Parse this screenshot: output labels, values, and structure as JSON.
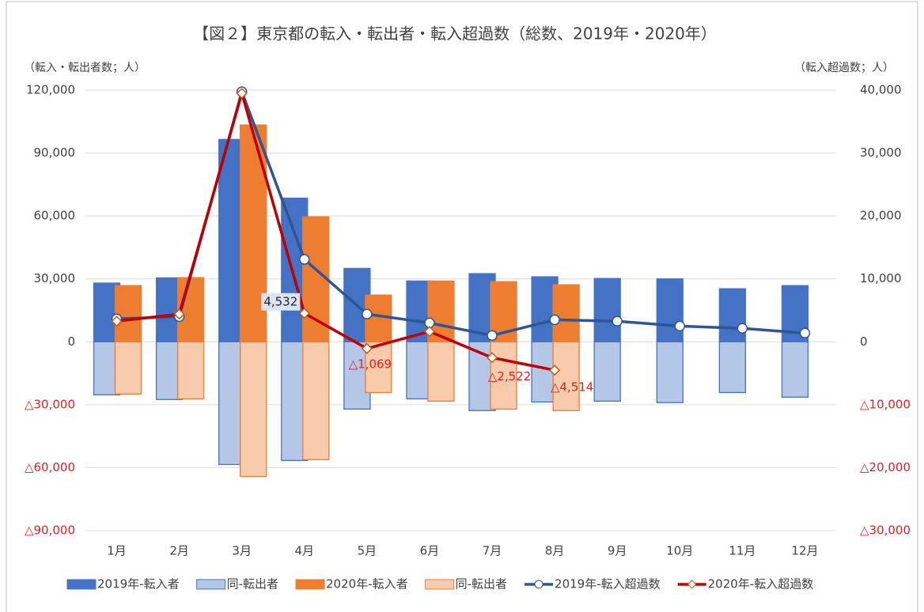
{
  "chart_data": {
    "type": "bar",
    "title": "【図２】東京都の転入・転出者・転入超過数（総数、2019年・2020年）",
    "ylabel": "（転入・転出者数；人）",
    "y2label": "（転入超過数；人）",
    "categories": [
      "1月",
      "2月",
      "3月",
      "4月",
      "5月",
      "6月",
      "7月",
      "8月",
      "9月",
      "10月",
      "11月",
      "12月"
    ],
    "series": [
      {
        "name": "2019年-転入者",
        "type": "bar",
        "color": "#4472c4",
        "edgecolor": "#4472c4",
        "values": [
          28000,
          30500,
          96500,
          68500,
          35000,
          29000,
          32500,
          31000,
          30200,
          30000,
          25300,
          26800
        ]
      },
      {
        "name": "同-転出者",
        "type": "bar",
        "color": "#b4c7e7",
        "edgecolor": "#4472c4",
        "values": [
          -25300,
          -27500,
          -58500,
          -56600,
          -32100,
          -27200,
          -32800,
          -28700,
          -28300,
          -29000,
          -24200,
          -26400
        ]
      },
      {
        "name": "2020年-転入者",
        "type": "bar",
        "color": "#ed7d31",
        "edgecolor": "#ed7d31",
        "values": [
          26800,
          30600,
          103400,
          59600,
          22300,
          29000,
          28700,
          27200,
          null,
          null,
          null,
          null
        ]
      },
      {
        "name": "同-転出者",
        "type": "bar",
        "color": "#f8cbad",
        "edgecolor": "#ed7d31",
        "values": [
          -24900,
          -27200,
          -64200,
          -56200,
          -24200,
          -28300,
          -32100,
          -32800,
          null,
          null,
          null,
          null
        ]
      },
      {
        "name": "2019年-転入超過数",
        "type": "line",
        "axis": "y2",
        "color": "#2f5597",
        "marker": "circle",
        "values": [
          3650,
          4000,
          39750,
          13100,
          4400,
          3000,
          1000,
          3500,
          3270,
          2500,
          2140,
          1380
        ]
      },
      {
        "name": "2020年-転入超過数",
        "type": "line",
        "axis": "y2",
        "color": "#c00000",
        "marker": "diamond",
        "values": [
          3270,
          4400,
          39500,
          4532,
          -1069,
          1640,
          -2522,
          -4514,
          null,
          null,
          null,
          null
        ],
        "value_labels": [
          null,
          null,
          null,
          "4,532",
          "△1,069",
          null,
          "△2,522",
          "△4,514",
          null,
          null,
          null,
          null
        ]
      }
    ],
    "ylim": [
      -90000,
      120000
    ],
    "yticks": [
      {
        "value": -90000,
        "label": "△90,000"
      },
      {
        "value": -60000,
        "label": "△60,000"
      },
      {
        "value": -30000,
        "label": "△30,000"
      },
      0,
      {
        "value": 30000,
        "label": "30,000"
      },
      {
        "value": 60000,
        "label": "60,000"
      },
      {
        "value": 90000,
        "label": "90,000"
      },
      {
        "value": 120000,
        "label": "120,000"
      }
    ],
    "y2lim": [
      -30000,
      40000
    ],
    "y2ticks": [
      {
        "value": -30000,
        "label": "△30,000"
      },
      {
        "value": -20000,
        "label": "△20,000"
      },
      {
        "value": -10000,
        "label": "△10,000"
      },
      0,
      {
        "value": 10000,
        "label": "10,000"
      },
      {
        "value": 20000,
        "label": "20,000"
      },
      {
        "value": 30000,
        "label": "30,000"
      },
      {
        "value": 40000,
        "label": "40,000"
      }
    ],
    "grid": true,
    "legend": "bottom"
  }
}
